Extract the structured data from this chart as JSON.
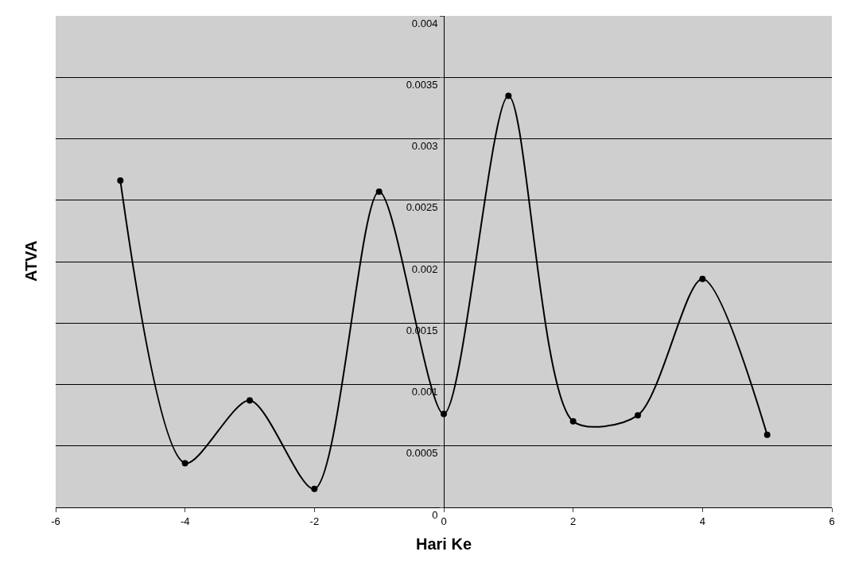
{
  "chart_data": {
    "type": "line",
    "xlabel": "Hari Ke",
    "ylabel": "ATVA",
    "x": [
      -5,
      -4,
      -3,
      -2,
      -1,
      0,
      1,
      2,
      3,
      4,
      5
    ],
    "series": [
      {
        "color": "#000000",
        "values": [
          0.00266,
          0.00036,
          0.00087,
          0.00015,
          0.00257,
          0.00076,
          0.00335,
          0.0007,
          0.00075,
          0.00186,
          0.00059
        ]
      }
    ],
    "xlim": [
      -6,
      6
    ],
    "xticks": [
      -6,
      -4,
      -2,
      0,
      2,
      4,
      6
    ],
    "ylim": [
      0,
      0.004
    ],
    "yticks": [
      0,
      0.0005,
      0.001,
      0.0015,
      0.002,
      0.0025,
      0.003,
      0.0035,
      0.004
    ],
    "grid": "y",
    "marker": "circle",
    "line_style": "solid"
  }
}
